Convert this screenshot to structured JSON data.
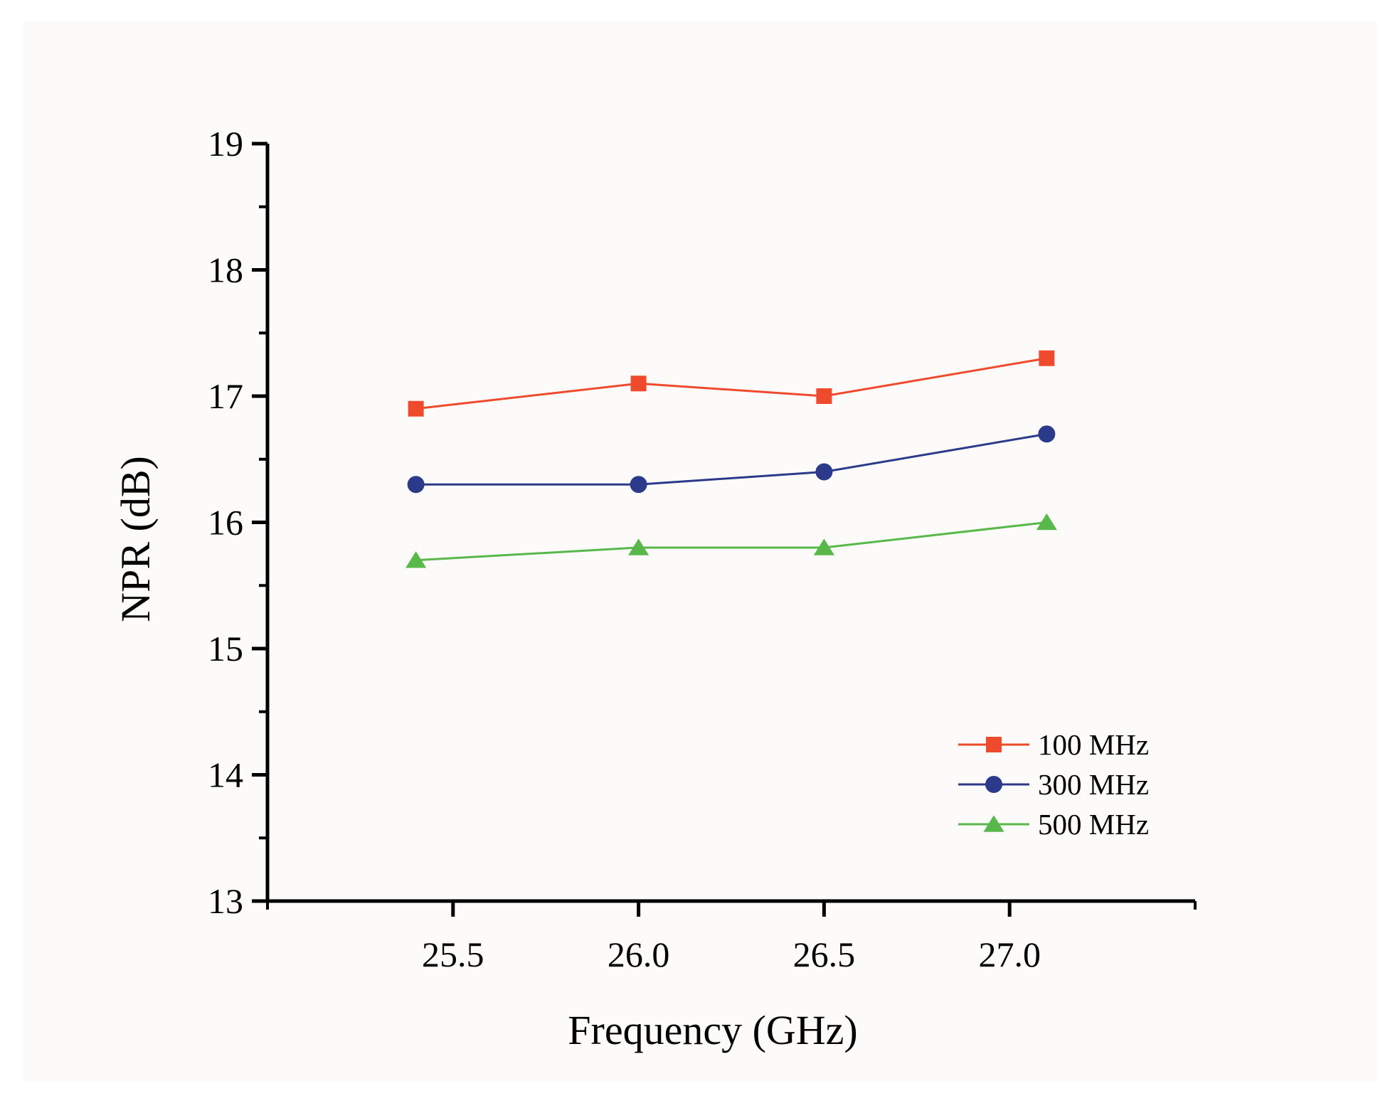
{
  "chart_data": {
    "type": "line",
    "title": "",
    "xlabel": "Frequency (GHz)",
    "ylabel": "NPR (dB)",
    "xlim": [
      25.0,
      27.5
    ],
    "ylim": [
      13,
      19
    ],
    "x_ticks": [
      "25.5",
      "26.0",
      "26.5",
      "27.0"
    ],
    "y_ticks": [
      "13",
      "14",
      "15",
      "16",
      "17",
      "18",
      "19"
    ],
    "grid": false,
    "legend_position": "lower-right",
    "x": [
      25.4,
      26.0,
      26.5,
      27.1
    ],
    "series": [
      {
        "name": "100 MHz",
        "color": "#f04a2c",
        "marker": "square",
        "values": [
          16.9,
          17.1,
          17.0,
          17.3
        ]
      },
      {
        "name": "300 MHz",
        "color": "#2b3a8a",
        "marker": "circle",
        "values": [
          16.3,
          16.3,
          16.4,
          16.7
        ]
      },
      {
        "name": "500 MHz",
        "color": "#58b84a",
        "marker": "triangle",
        "values": [
          15.7,
          15.8,
          15.8,
          16.0
        ]
      }
    ]
  }
}
